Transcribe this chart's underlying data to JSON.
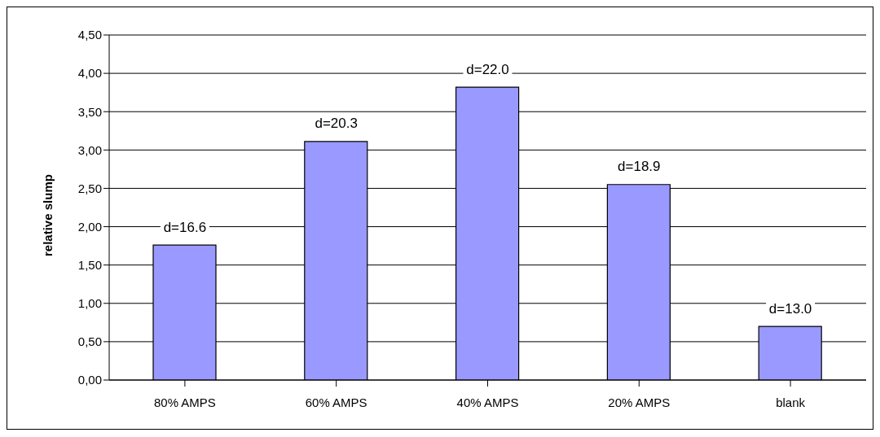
{
  "chart_data": {
    "type": "bar",
    "ylabel": "relative slump",
    "categories": [
      "80% AMPS",
      "60% AMPS",
      "40% AMPS",
      "20% AMPS",
      "blank"
    ],
    "values": [
      1.76,
      3.11,
      3.82,
      2.55,
      0.7
    ],
    "annotations": [
      {
        "text": "d=16.6",
        "x": "80% AMPS",
        "y": 1.76
      },
      {
        "text": "d=20.3",
        "x": "60% AMPS",
        "y": 3.11
      },
      {
        "text": "d=22.0",
        "x": "40% AMPS",
        "y": 3.82
      },
      {
        "text": "d=18.9",
        "x": "20% AMPS",
        "y": 2.55
      },
      {
        "text": "d=13.0",
        "x": "blank",
        "y": 0.7
      }
    ],
    "color": "#9999ff",
    "ylim": [
      0,
      4.5
    ],
    "yticks": [
      {
        "value": 0,
        "label": "0,00"
      },
      {
        "value": 0.5,
        "label": "0,50"
      },
      {
        "value": 1,
        "label": "1,00"
      },
      {
        "value": 1.5,
        "label": "1,50"
      },
      {
        "value": 2,
        "label": "2,00"
      },
      {
        "value": 2.5,
        "label": "2,50"
      },
      {
        "value": 3,
        "label": "3,00"
      },
      {
        "value": 3.5,
        "label": "3,50"
      },
      {
        "value": 4,
        "label": "4,00"
      },
      {
        "value": 4.5,
        "label": "4,50"
      }
    ],
    "grid": "y"
  }
}
